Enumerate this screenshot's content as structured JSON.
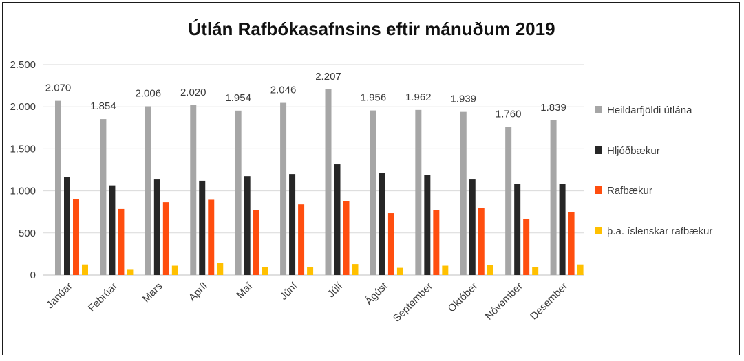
{
  "chart_data": {
    "type": "bar",
    "title": "Útlán Rafbókasafnsins eftir mánuðum 2019",
    "xlabel": "",
    "ylabel": "",
    "ylim": [
      0,
      2500
    ],
    "yticks": [
      0,
      500,
      1000,
      1500,
      2000,
      2500
    ],
    "ytick_labels": [
      "0",
      "500",
      "1.000",
      "1.500",
      "2.000",
      "2.500"
    ],
    "grid": true,
    "legend_position": "right",
    "categories": [
      "Janúar",
      "Febrúar",
      "Mars",
      "Apríl",
      "Maí",
      "Júní",
      "Júlí",
      "Ágúst",
      "September",
      "Október",
      "Nóvember",
      "Desember"
    ],
    "series": [
      {
        "name": "Heildarfjöldi útlána",
        "color": "#a6a6a6",
        "values": [
          2070,
          1854,
          2006,
          2020,
          1954,
          2046,
          2207,
          1956,
          1962,
          1939,
          1760,
          1839
        ],
        "data_labels": [
          "2.070",
          "1.854",
          "2.006",
          "2.020",
          "1.954",
          "2.046",
          "2.207",
          "1.956",
          "1.962",
          "1.939",
          "1.760",
          "1.839"
        ]
      },
      {
        "name": "Hljóðbækur",
        "color": "#262626",
        "values": [
          1160,
          1065,
          1135,
          1120,
          1175,
          1200,
          1315,
          1215,
          1185,
          1135,
          1080,
          1085
        ]
      },
      {
        "name": "Rafbækur",
        "color": "#ff4e0f",
        "values": [
          905,
          785,
          865,
          895,
          775,
          840,
          880,
          735,
          770,
          800,
          670,
          745
        ]
      },
      {
        "name": "þ.a. íslenskar rafbækur",
        "color": "#ffc000",
        "values": [
          125,
          70,
          110,
          140,
          95,
          95,
          130,
          85,
          110,
          120,
          95,
          125
        ]
      }
    ]
  }
}
